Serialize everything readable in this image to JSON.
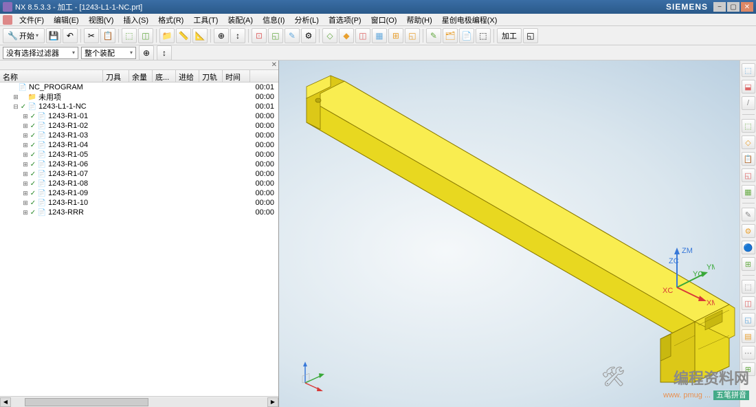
{
  "title": "NX 8.5.3.3 - 加工 - [1243-L1-1-NC.prt]",
  "brand": "SIEMENS",
  "winbtns": {
    "min": "−",
    "max": "▢",
    "close": "✕"
  },
  "menu": [
    "文件(F)",
    "编辑(E)",
    "视图(V)",
    "插入(S)",
    "格式(R)",
    "工具(T)",
    "装配(A)",
    "信息(I)",
    "分析(L)",
    "首选项(P)",
    "窗口(O)",
    "帮助(H)",
    "星创电极编程(X)"
  ],
  "tb": {
    "start": "开始",
    "dd": "▾",
    "machining": "加工"
  },
  "filter": {
    "label": "没有选择过滤器",
    "assembly": "整个装配"
  },
  "tree": {
    "cols": [
      "名称",
      "刀具",
      "余量",
      "底...",
      "进给",
      "刀轨",
      "时间"
    ],
    "w": [
      150,
      38,
      34,
      34,
      34,
      34,
      40
    ],
    "rows": [
      {
        "ind": 0,
        "exp": "",
        "chk": "",
        "ico": "📄",
        "name": "NC_PROGRAM",
        "time": "00:01"
      },
      {
        "ind": 1,
        "exp": "⊞",
        "chk": "",
        "ico": "📁",
        "name": "未用项",
        "time": "00:00"
      },
      {
        "ind": 1,
        "exp": "⊟",
        "chk": "✓",
        "ico": "📄",
        "name": "1243-L1-1-NC",
        "time": "00:01"
      },
      {
        "ind": 2,
        "exp": "⊞",
        "chk": "✓",
        "ico": "📄",
        "name": "1243-R1-01",
        "time": "00:00"
      },
      {
        "ind": 2,
        "exp": "⊞",
        "chk": "✓",
        "ico": "📄",
        "name": "1243-R1-02",
        "time": "00:00"
      },
      {
        "ind": 2,
        "exp": "⊞",
        "chk": "✓",
        "ico": "📄",
        "name": "1243-R1-03",
        "time": "00:00"
      },
      {
        "ind": 2,
        "exp": "⊞",
        "chk": "✓",
        "ico": "📄",
        "name": "1243-R1-04",
        "time": "00:00"
      },
      {
        "ind": 2,
        "exp": "⊞",
        "chk": "✓",
        "ico": "📄",
        "name": "1243-R1-05",
        "time": "00:00"
      },
      {
        "ind": 2,
        "exp": "⊞",
        "chk": "✓",
        "ico": "📄",
        "name": "1243-R1-06",
        "time": "00:00"
      },
      {
        "ind": 2,
        "exp": "⊞",
        "chk": "✓",
        "ico": "📄",
        "name": "1243-R1-07",
        "time": "00:00"
      },
      {
        "ind": 2,
        "exp": "⊞",
        "chk": "✓",
        "ico": "📄",
        "name": "1243-R1-08",
        "time": "00:00"
      },
      {
        "ind": 2,
        "exp": "⊞",
        "chk": "✓",
        "ico": "📄",
        "name": "1243-R1-09",
        "time": "00:00"
      },
      {
        "ind": 2,
        "exp": "⊞",
        "chk": "✓",
        "ico": "📄",
        "name": "1243-R1-10",
        "time": "00:00"
      },
      {
        "ind": 2,
        "exp": "⊞",
        "chk": "✓",
        "ico": "📄",
        "name": "1243-RRR",
        "time": "00:00"
      }
    ]
  },
  "csys": {
    "z": "ZM",
    "zc": "ZC",
    "y": "YM",
    "yc": "YC",
    "x": "XM",
    "xc": "XC",
    "zcol": "#3878d8",
    "ycol": "#38a838",
    "xcol": "#d83838"
  },
  "rbtns": [
    "⬚",
    "⬓",
    "/",
    "⬚",
    "◇",
    "📋",
    "◱",
    "▦",
    "✎",
    "⚙",
    "🔵",
    "⊞",
    "⬚",
    "◫",
    "◱",
    "▤",
    "⋯",
    "⊞"
  ],
  "tbtns1": [
    "💾",
    "↶",
    "✂",
    "📋",
    "⧉",
    "📏",
    "📐",
    "📁",
    "🔍",
    "⊕",
    "↕",
    "⊡",
    "⬚",
    "🎨",
    "◱",
    "⚙",
    "◇",
    "◆",
    "◫",
    "▦",
    "⊞",
    "◱",
    "✎",
    "🗂",
    "📄",
    "⬚",
    "◫",
    "加工",
    "◱"
  ],
  "watermark": {
    "l1": "编程资料网",
    "l2": "www. pmug ...",
    "tag": "五笔拼音"
  },
  "part": {
    "body_fill": "#f5e626",
    "body_stroke": "#8a7a00",
    "shadow": "#c2b31e",
    "dark": "#a89618"
  }
}
